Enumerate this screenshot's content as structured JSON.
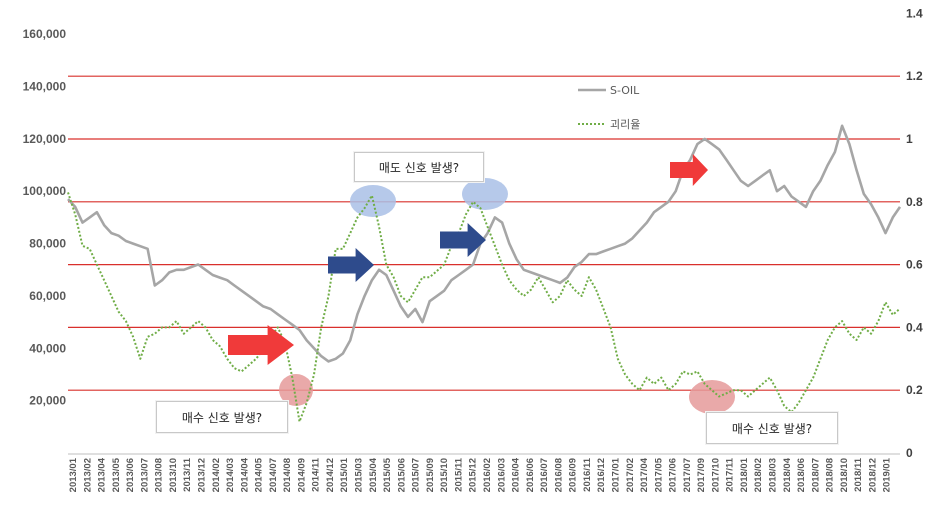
{
  "chart_data": {
    "type": "line",
    "title": "",
    "y_left": {
      "ticks": [
        "160,000",
        "140,000",
        "120,000",
        "100,000",
        "80,000",
        "60,000",
        "40,000",
        "20,000"
      ],
      "range": [
        0,
        170000
      ]
    },
    "y_right": {
      "ticks": [
        "1.4",
        "1.2",
        "1",
        "0.8",
        "0.6",
        "0.4",
        "0.2",
        "0"
      ],
      "range": [
        0,
        1.4
      ]
    },
    "x_labels": [
      "2013/01",
      "2013/02",
      "2013/04",
      "2013/05",
      "2013/06",
      "2013/07",
      "2013/08",
      "2013/10",
      "2013/11",
      "2013/12",
      "2014/02",
      "2014/03",
      "2014/04",
      "2014/05",
      "2014/07",
      "2014/08",
      "2014/09",
      "2014/11",
      "2014/12",
      "2015/01",
      "2015/03",
      "2015/04",
      "2015/05",
      "2015/06",
      "2015/07",
      "2015/09",
      "2015/10",
      "2015/11",
      "2015/12",
      "2016/02",
      "2016/03",
      "2016/04",
      "2016/06",
      "2016/07",
      "2016/08",
      "2016/09",
      "2016/11",
      "2016/12",
      "2017/01",
      "2017/02",
      "2017/04",
      "2017/05",
      "2017/06",
      "2017/07",
      "2017/09",
      "2017/10",
      "2017/11",
      "2018/01",
      "2018/02",
      "2018/03",
      "2018/04",
      "2018/06",
      "2018/07",
      "2018/08",
      "2018/10",
      "2018/11",
      "2018/12",
      "2019/01"
    ],
    "reference_lines_right": [
      0.2,
      0.4,
      0.6,
      0.8,
      1.0,
      1.2
    ],
    "series": [
      {
        "name": "S-OIL",
        "axis": "left",
        "style": "solid-gray",
        "points": [
          [
            0,
            97000
          ],
          [
            0.5,
            94000
          ],
          [
            1,
            88000
          ],
          [
            1.5,
            90000
          ],
          [
            2,
            92000
          ],
          [
            2.5,
            87000
          ],
          [
            3,
            84000
          ],
          [
            3.5,
            83000
          ],
          [
            4,
            81000
          ],
          [
            4.5,
            80000
          ],
          [
            5,
            79000
          ],
          [
            5.5,
            78000
          ],
          [
            6,
            64000
          ],
          [
            6.5,
            66000
          ],
          [
            7,
            69000
          ],
          [
            7.5,
            70000
          ],
          [
            8,
            70000
          ],
          [
            8.5,
            71000
          ],
          [
            9,
            72000
          ],
          [
            9.5,
            70000
          ],
          [
            10,
            68000
          ],
          [
            10.5,
            67000
          ],
          [
            11,
            66000
          ],
          [
            11.5,
            64000
          ],
          [
            12,
            62000
          ],
          [
            12.5,
            60000
          ],
          [
            13,
            58000
          ],
          [
            13.5,
            56000
          ],
          [
            14,
            55000
          ],
          [
            14.5,
            53000
          ],
          [
            15,
            51000
          ],
          [
            15.5,
            49000
          ],
          [
            16,
            47000
          ],
          [
            16.5,
            43000
          ],
          [
            17,
            40000
          ],
          [
            17.5,
            37000
          ],
          [
            18,
            35000
          ],
          [
            18.5,
            36000
          ],
          [
            19,
            38000
          ],
          [
            19.5,
            43000
          ],
          [
            20,
            53000
          ],
          [
            20.5,
            60000
          ],
          [
            21,
            66000
          ],
          [
            21.5,
            70000
          ],
          [
            22,
            68000
          ],
          [
            22.5,
            62000
          ],
          [
            23,
            56000
          ],
          [
            23.5,
            52000
          ],
          [
            24,
            55000
          ],
          [
            24.5,
            50000
          ],
          [
            25,
            58000
          ],
          [
            25.5,
            60000
          ],
          [
            26,
            62000
          ],
          [
            26.5,
            66000
          ],
          [
            27,
            68000
          ],
          [
            27.5,
            70000
          ],
          [
            28,
            72000
          ],
          [
            28.5,
            80000
          ],
          [
            29,
            84000
          ],
          [
            29.5,
            90000
          ],
          [
            30,
            88000
          ],
          [
            30.5,
            80000
          ],
          [
            31,
            74000
          ],
          [
            31.5,
            70000
          ],
          [
            32,
            69000
          ],
          [
            32.5,
            68000
          ],
          [
            33,
            67000
          ],
          [
            33.5,
            66000
          ],
          [
            34,
            65000
          ],
          [
            34.5,
            67000
          ],
          [
            35,
            71000
          ],
          [
            35.5,
            73000
          ],
          [
            36,
            76000
          ],
          [
            36.5,
            76000
          ],
          [
            37,
            77000
          ],
          [
            37.5,
            78000
          ],
          [
            38,
            79000
          ],
          [
            38.5,
            80000
          ],
          [
            39,
            82000
          ],
          [
            39.5,
            85000
          ],
          [
            40,
            88000
          ],
          [
            40.5,
            92000
          ],
          [
            41,
            94000
          ],
          [
            41.5,
            96000
          ],
          [
            42,
            100000
          ],
          [
            42.5,
            108000
          ],
          [
            43,
            112000
          ],
          [
            43.5,
            118000
          ],
          [
            44,
            120000
          ],
          [
            44.5,
            118000
          ],
          [
            45,
            116000
          ],
          [
            45.5,
            112000
          ],
          [
            46,
            108000
          ],
          [
            46.5,
            104000
          ],
          [
            47,
            102000
          ],
          [
            47.5,
            104000
          ],
          [
            48,
            106000
          ],
          [
            48.5,
            108000
          ],
          [
            49,
            100000
          ],
          [
            49.5,
            102000
          ],
          [
            50,
            98000
          ],
          [
            50.5,
            96000
          ],
          [
            51,
            94000
          ],
          [
            51.5,
            100000
          ],
          [
            52,
            104000
          ],
          [
            52.5,
            110000
          ],
          [
            53,
            115000
          ],
          [
            53.5,
            125000
          ],
          [
            54,
            118000
          ],
          [
            54.5,
            108000
          ],
          [
            55,
            99000
          ],
          [
            55.5,
            95000
          ],
          [
            56,
            90000
          ],
          [
            56.5,
            84000
          ],
          [
            57,
            90000
          ],
          [
            57.5,
            94000
          ]
        ]
      },
      {
        "name": "괴리율",
        "axis": "right",
        "style": "dotted-green",
        "points": [
          [
            0,
            0.83
          ],
          [
            0.5,
            0.76
          ],
          [
            1,
            0.66
          ],
          [
            1.5,
            0.65
          ],
          [
            2,
            0.6
          ],
          [
            2.5,
            0.55
          ],
          [
            3,
            0.5
          ],
          [
            3.5,
            0.45
          ],
          [
            4,
            0.42
          ],
          [
            4.5,
            0.37
          ],
          [
            5,
            0.3
          ],
          [
            5.5,
            0.37
          ],
          [
            6,
            0.38
          ],
          [
            6.5,
            0.4
          ],
          [
            7,
            0.4
          ],
          [
            7.5,
            0.42
          ],
          [
            8,
            0.38
          ],
          [
            8.5,
            0.4
          ],
          [
            9,
            0.42
          ],
          [
            9.5,
            0.4
          ],
          [
            10,
            0.36
          ],
          [
            10.5,
            0.34
          ],
          [
            11,
            0.3
          ],
          [
            11.5,
            0.27
          ],
          [
            12,
            0.26
          ],
          [
            12.5,
            0.28
          ],
          [
            13,
            0.3
          ],
          [
            13.5,
            0.33
          ],
          [
            14,
            0.37
          ],
          [
            14.5,
            0.4
          ],
          [
            15,
            0.35
          ],
          [
            15.5,
            0.24
          ],
          [
            16,
            0.1
          ],
          [
            16.5,
            0.16
          ],
          [
            17,
            0.25
          ],
          [
            17.5,
            0.4
          ],
          [
            18,
            0.5
          ],
          [
            18.5,
            0.65
          ],
          [
            19,
            0.65
          ],
          [
            19.5,
            0.7
          ],
          [
            20,
            0.75
          ],
          [
            20.5,
            0.78
          ],
          [
            21,
            0.82
          ],
          [
            21.5,
            0.72
          ],
          [
            22,
            0.6
          ],
          [
            22.5,
            0.56
          ],
          [
            23,
            0.5
          ],
          [
            23.5,
            0.48
          ],
          [
            24,
            0.52
          ],
          [
            24.5,
            0.56
          ],
          [
            25,
            0.56
          ],
          [
            25.5,
            0.58
          ],
          [
            26,
            0.6
          ],
          [
            26.5,
            0.66
          ],
          [
            27,
            0.7
          ],
          [
            27.5,
            0.76
          ],
          [
            28,
            0.8
          ],
          [
            28.5,
            0.78
          ],
          [
            29,
            0.72
          ],
          [
            29.5,
            0.66
          ],
          [
            30,
            0.6
          ],
          [
            30.5,
            0.55
          ],
          [
            31,
            0.52
          ],
          [
            31.5,
            0.5
          ],
          [
            32,
            0.52
          ],
          [
            32.5,
            0.56
          ],
          [
            33,
            0.52
          ],
          [
            33.5,
            0.48
          ],
          [
            34,
            0.5
          ],
          [
            34.5,
            0.55
          ],
          [
            35,
            0.52
          ],
          [
            35.5,
            0.5
          ],
          [
            36,
            0.56
          ],
          [
            36.5,
            0.52
          ],
          [
            37,
            0.46
          ],
          [
            37.5,
            0.4
          ],
          [
            38,
            0.3
          ],
          [
            38.5,
            0.25
          ],
          [
            39,
            0.22
          ],
          [
            39.5,
            0.2
          ],
          [
            40,
            0.24
          ],
          [
            40.5,
            0.22
          ],
          [
            41,
            0.24
          ],
          [
            41.5,
            0.2
          ],
          [
            42,
            0.22
          ],
          [
            42.5,
            0.26
          ],
          [
            43,
            0.25
          ],
          [
            43.5,
            0.26
          ],
          [
            44,
            0.22
          ],
          [
            44.5,
            0.2
          ],
          [
            45,
            0.18
          ],
          [
            45.5,
            0.19
          ],
          [
            46,
            0.2
          ],
          [
            46.5,
            0.2
          ],
          [
            47,
            0.18
          ],
          [
            47.5,
            0.2
          ],
          [
            48,
            0.22
          ],
          [
            48.5,
            0.24
          ],
          [
            49,
            0.2
          ],
          [
            49.5,
            0.15
          ],
          [
            50,
            0.13
          ],
          [
            50.5,
            0.16
          ],
          [
            51,
            0.2
          ],
          [
            51.5,
            0.24
          ],
          [
            52,
            0.3
          ],
          [
            52.5,
            0.36
          ],
          [
            53,
            0.4
          ],
          [
            53.5,
            0.42
          ],
          [
            54,
            0.38
          ],
          [
            54.5,
            0.36
          ],
          [
            55,
            0.4
          ],
          [
            55.5,
            0.38
          ],
          [
            56,
            0.42
          ],
          [
            56.5,
            0.48
          ],
          [
            57,
            0.44
          ],
          [
            57.5,
            0.46
          ]
        ]
      }
    ],
    "legend": [
      {
        "label": "S-OIL",
        "color": "#a6a6a6",
        "style": "solid"
      },
      {
        "label": "괴리율",
        "color": "#70ad47",
        "style": "dotted"
      }
    ],
    "annotations": [
      {
        "text": "매도 신호 발생?",
        "kind": "sell"
      },
      {
        "text": "매수 신호 발생?",
        "kind": "buy-1"
      },
      {
        "text": "매수 신호 발생?",
        "kind": "buy-2"
      }
    ],
    "colors": {
      "price_line": "#a6a6a6",
      "ratio_line": "#70ad47",
      "reference_line": "#d9302c",
      "buy_arrow": "#f03a3a",
      "sell_arrow": "#2e4b8c",
      "buy_circle": "#e59a9a",
      "sell_circle": "#a9bfe6"
    }
  }
}
